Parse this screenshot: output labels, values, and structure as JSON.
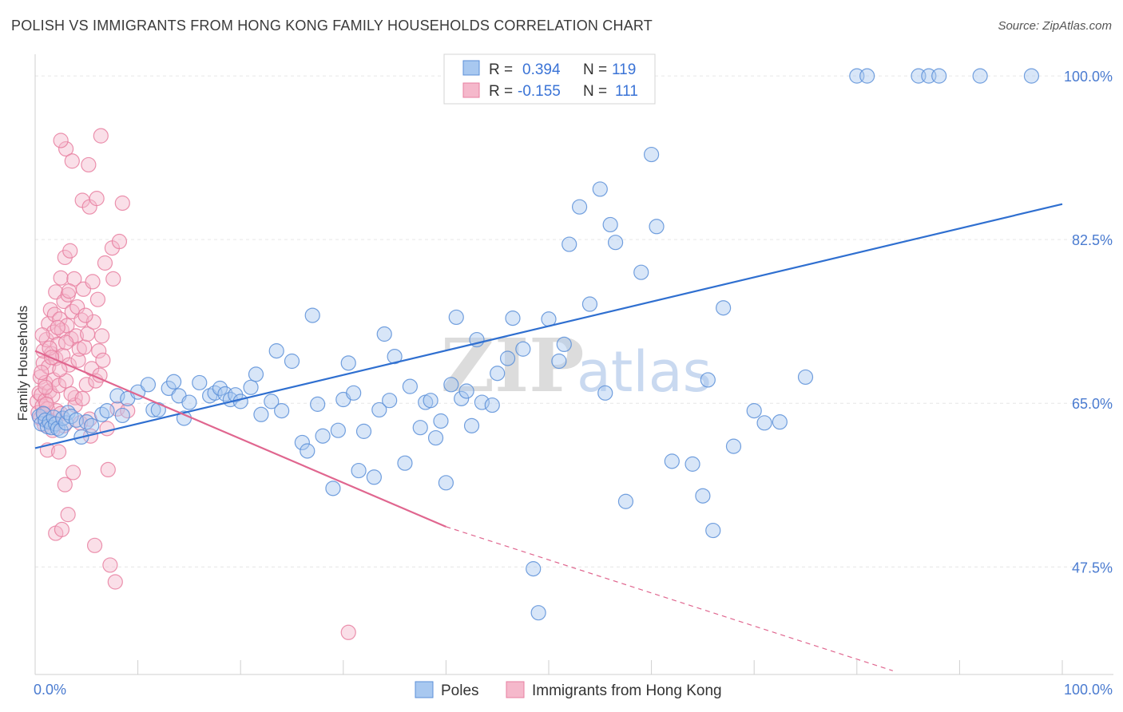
{
  "title": "POLISH VS IMMIGRANTS FROM HONG KONG FAMILY HOUSEHOLDS CORRELATION CHART",
  "source": "Source: ZipAtlas.com",
  "watermark": {
    "zip": "ZIP",
    "atlas": "atlas"
  },
  "legend": {
    "rows": [
      {
        "r_label": "R =",
        "r_value": "0.394",
        "n_label": "N =",
        "n_value": "119"
      },
      {
        "r_label": "R =",
        "r_value": "-0.155",
        "n_label": "N =",
        "n_value": "111"
      }
    ]
  },
  "bottom_legend": [
    "Poles",
    "Immigrants from Hong Kong"
  ],
  "colors": {
    "blue_fill": "#a8c8f0",
    "blue_stroke": "#5b8fd8",
    "blue_line": "#2f6fd0",
    "pink_fill": "#f5b8cb",
    "pink_stroke": "#e87fa0",
    "pink_line": "#e0668f",
    "grid": "#e6e6e6",
    "axis_label": "#4a7bd0"
  },
  "chart_data": {
    "type": "scatter",
    "title": "POLISH VS IMMIGRANTS FROM HONG KONG FAMILY HOUSEHOLDS CORRELATION CHART",
    "xlabel": "",
    "ylabel": "Family Households",
    "xlim": [
      0,
      100
    ],
    "ylim": [
      36,
      103
    ],
    "x_tick_labels": [
      "0.0%",
      "100.0%"
    ],
    "y_ticks": [
      47.5,
      65.0,
      82.5,
      100.0
    ],
    "y_tick_labels": [
      "47.5%",
      "65.0%",
      "82.5%",
      "100.0%"
    ],
    "grid": true,
    "series": [
      {
        "name": "Poles",
        "r": 0.394,
        "n": 119,
        "trend": {
          "x0": 0,
          "y0": 60.2,
          "x1": 100,
          "y1": 86.3
        },
        "points": [
          [
            0.4,
            63.6
          ],
          [
            0.6,
            62.8
          ],
          [
            0.8,
            63.9
          ],
          [
            1.0,
            63.2
          ],
          [
            1.2,
            62.5
          ],
          [
            1.4,
            63.0
          ],
          [
            1.6,
            62.4
          ],
          [
            1.8,
            63.5
          ],
          [
            2.0,
            62.8
          ],
          [
            2.2,
            62.3
          ],
          [
            2.5,
            62.1
          ],
          [
            2.7,
            63.4
          ],
          [
            3.0,
            62.9
          ],
          [
            3.2,
            64.0
          ],
          [
            3.5,
            63.6
          ],
          [
            4.0,
            63.2
          ],
          [
            4.5,
            61.4
          ],
          [
            5.0,
            63.0
          ],
          [
            5.5,
            62.6
          ],
          [
            6.5,
            63.8
          ],
          [
            7.0,
            64.2
          ],
          [
            8.0,
            65.8
          ],
          [
            8.5,
            63.7
          ],
          [
            9.0,
            65.5
          ],
          [
            10.0,
            66.2
          ],
          [
            11.0,
            67.0
          ],
          [
            11.5,
            64.3
          ],
          [
            12.0,
            64.3
          ],
          [
            13.0,
            66.6
          ],
          [
            13.5,
            67.3
          ],
          [
            14.0,
            65.8
          ],
          [
            14.5,
            63.4
          ],
          [
            15.0,
            65.1
          ],
          [
            16.0,
            67.2
          ],
          [
            17.0,
            65.8
          ],
          [
            17.5,
            66.1
          ],
          [
            18.0,
            66.6
          ],
          [
            18.5,
            66.0
          ],
          [
            19.0,
            65.4
          ],
          [
            19.5,
            65.9
          ],
          [
            20.0,
            65.2
          ],
          [
            21.0,
            66.7
          ],
          [
            21.5,
            68.1
          ],
          [
            22.0,
            63.8
          ],
          [
            23.0,
            65.2
          ],
          [
            23.5,
            70.6
          ],
          [
            24.0,
            64.2
          ],
          [
            25.0,
            69.5
          ],
          [
            26.0,
            60.8
          ],
          [
            26.5,
            59.9
          ],
          [
            27.0,
            74.4
          ],
          [
            27.5,
            64.9
          ],
          [
            28.0,
            61.5
          ],
          [
            29.0,
            55.9
          ],
          [
            29.5,
            62.1
          ],
          [
            30.0,
            65.4
          ],
          [
            30.5,
            69.3
          ],
          [
            31.0,
            66.1
          ],
          [
            31.5,
            57.8
          ],
          [
            32.0,
            62.0
          ],
          [
            33.0,
            57.1
          ],
          [
            33.5,
            64.3
          ],
          [
            34.0,
            72.4
          ],
          [
            34.5,
            65.3
          ],
          [
            35.0,
            70.0
          ],
          [
            36.0,
            58.6
          ],
          [
            36.5,
            66.8
          ],
          [
            37.5,
            62.4
          ],
          [
            38.0,
            65.1
          ],
          [
            38.5,
            65.3
          ],
          [
            39.0,
            61.3
          ],
          [
            39.5,
            63.1
          ],
          [
            40.0,
            56.5
          ],
          [
            40.5,
            67.0
          ],
          [
            41.0,
            74.2
          ],
          [
            41.5,
            65.5
          ],
          [
            42.0,
            66.3
          ],
          [
            42.5,
            62.6
          ],
          [
            43.0,
            71.8
          ],
          [
            43.5,
            65.1
          ],
          [
            44.5,
            64.8
          ],
          [
            45.0,
            68.2
          ],
          [
            46.0,
            69.8
          ],
          [
            46.5,
            74.1
          ],
          [
            47.5,
            70.8
          ],
          [
            48.5,
            47.3
          ],
          [
            49.0,
            42.6
          ],
          [
            50.0,
            74.0
          ],
          [
            51.0,
            69.5
          ],
          [
            51.5,
            71.3
          ],
          [
            52.0,
            82.0
          ],
          [
            53.0,
            86.0
          ],
          [
            54.0,
            75.6
          ],
          [
            55.0,
            87.9
          ],
          [
            55.5,
            66.1
          ],
          [
            56.0,
            84.1
          ],
          [
            56.5,
            82.2
          ],
          [
            57.5,
            54.5
          ],
          [
            59.0,
            79.0
          ],
          [
            60.0,
            91.6
          ],
          [
            60.5,
            83.9
          ],
          [
            62.0,
            58.8
          ],
          [
            64.0,
            58.5
          ],
          [
            65.0,
            55.1
          ],
          [
            65.5,
            67.5
          ],
          [
            66.0,
            51.4
          ],
          [
            67.0,
            75.2
          ],
          [
            68.0,
            60.4
          ],
          [
            70.0,
            64.2
          ],
          [
            71.0,
            62.9
          ],
          [
            72.5,
            63.0
          ],
          [
            75.0,
            67.8
          ],
          [
            80.0,
            100
          ],
          [
            81.0,
            100
          ],
          [
            86.0,
            100
          ],
          [
            87.0,
            100
          ],
          [
            88.0,
            100
          ],
          [
            92.0,
            100
          ],
          [
            97.0,
            100
          ]
        ]
      },
      {
        "name": "Immigrants from Hong Kong",
        "r": -0.155,
        "n": 111,
        "trend": {
          "x0": 0,
          "y0": 70.6,
          "x1": 40,
          "y1": 51.8
        },
        "trend_dashed": {
          "x0": 40,
          "y0": 51.8,
          "x1": 83.5,
          "y1": 36.4
        },
        "points": [
          [
            0.2,
            65.2
          ],
          [
            0.3,
            64.0
          ],
          [
            0.4,
            66.1
          ],
          [
            0.5,
            63.4
          ],
          [
            0.5,
            67.8
          ],
          [
            0.6,
            65.9
          ],
          [
            0.7,
            64.7
          ],
          [
            0.8,
            69.3
          ],
          [
            0.8,
            70.6
          ],
          [
            0.9,
            62.7
          ],
          [
            1.0,
            65.3
          ],
          [
            1.0,
            67.2
          ],
          [
            1.1,
            71.8
          ],
          [
            1.2,
            64.4
          ],
          [
            1.2,
            60.0
          ],
          [
            1.3,
            68.9
          ],
          [
            1.3,
            73.5
          ],
          [
            1.4,
            66.3
          ],
          [
            1.5,
            63.1
          ],
          [
            1.5,
            75.0
          ],
          [
            1.6,
            70.3
          ],
          [
            1.7,
            65.8
          ],
          [
            1.8,
            72.6
          ],
          [
            1.8,
            67.5
          ],
          [
            1.9,
            74.5
          ],
          [
            2.0,
            69.8
          ],
          [
            2.0,
            76.9
          ],
          [
            2.1,
            64.2
          ],
          [
            2.2,
            71.3
          ],
          [
            2.3,
            66.9
          ],
          [
            2.4,
            74.0
          ],
          [
            2.5,
            78.4
          ],
          [
            2.5,
            63.9
          ],
          [
            2.6,
            72.8
          ],
          [
            2.7,
            70.1
          ],
          [
            2.8,
            75.9
          ],
          [
            2.9,
            80.6
          ],
          [
            3.0,
            67.4
          ],
          [
            3.1,
            73.3
          ],
          [
            3.2,
            76.6
          ],
          [
            3.3,
            69.1
          ],
          [
            3.4,
            81.3
          ],
          [
            3.5,
            71.9
          ],
          [
            3.6,
            74.8
          ],
          [
            3.7,
            57.6
          ],
          [
            3.8,
            78.3
          ],
          [
            3.9,
            65.6
          ],
          [
            4.0,
            72.2
          ],
          [
            4.1,
            75.3
          ],
          [
            4.2,
            69.6
          ],
          [
            4.3,
            70.8
          ],
          [
            4.5,
            73.9
          ],
          [
            4.6,
            86.7
          ],
          [
            4.7,
            77.2
          ],
          [
            4.8,
            71.0
          ],
          [
            5.0,
            67.0
          ],
          [
            5.1,
            72.4
          ],
          [
            5.2,
            90.5
          ],
          [
            5.3,
            86.0
          ],
          [
            5.4,
            61.5
          ],
          [
            5.5,
            68.7
          ],
          [
            5.6,
            78.0
          ],
          [
            5.7,
            73.7
          ],
          [
            5.8,
            49.8
          ],
          [
            5.9,
            67.4
          ],
          [
            6.0,
            86.9
          ],
          [
            6.1,
            76.1
          ],
          [
            6.2,
            70.6
          ],
          [
            6.4,
            93.6
          ],
          [
            6.5,
            72.2
          ],
          [
            6.6,
            69.6
          ],
          [
            6.8,
            80.0
          ],
          [
            7.0,
            62.3
          ],
          [
            7.1,
            57.9
          ],
          [
            7.3,
            47.7
          ],
          [
            7.5,
            81.6
          ],
          [
            7.6,
            78.3
          ],
          [
            7.8,
            45.9
          ],
          [
            8.0,
            64.4
          ],
          [
            8.2,
            82.3
          ],
          [
            8.5,
            86.4
          ],
          [
            9.0,
            64.2
          ],
          [
            3.0,
            92.2
          ],
          [
            2.5,
            93.1
          ],
          [
            3.6,
            90.9
          ],
          [
            2.0,
            51.1
          ],
          [
            2.6,
            51.5
          ],
          [
            3.2,
            53.1
          ],
          [
            2.3,
            59.8
          ],
          [
            1.7,
            62.1
          ],
          [
            2.9,
            56.3
          ],
          [
            4.4,
            62.9
          ],
          [
            3.9,
            64.8
          ],
          [
            1.0,
            66.7
          ],
          [
            0.6,
            68.3
          ],
          [
            1.4,
            70.9
          ],
          [
            2.2,
            73.1
          ],
          [
            3.0,
            71.5
          ],
          [
            4.9,
            74.4
          ],
          [
            6.3,
            68.0
          ],
          [
            1.1,
            64.9
          ],
          [
            0.9,
            63.8
          ],
          [
            2.8,
            62.6
          ],
          [
            3.5,
            66.0
          ],
          [
            4.6,
            65.5
          ],
          [
            5.3,
            63.3
          ],
          [
            2.4,
            68.6
          ],
          [
            1.6,
            69.9
          ],
          [
            0.7,
            72.3
          ],
          [
            30.5,
            40.5
          ],
          [
            3.3,
            77.0
          ]
        ]
      }
    ]
  }
}
